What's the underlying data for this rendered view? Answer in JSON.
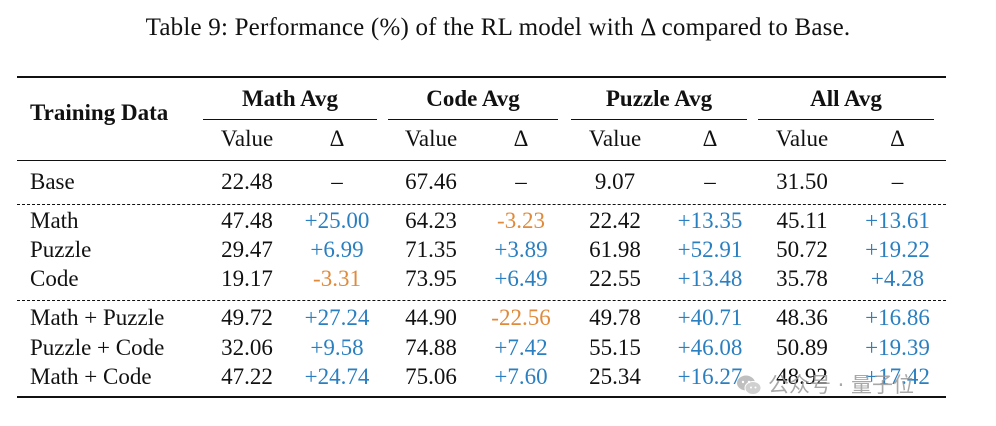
{
  "caption": "Table 9: Performance (%) of the RL model with Δ compared to Base.",
  "header": {
    "row_label": "Training Data",
    "groups": [
      "Math Avg",
      "Code Avg",
      "Puzzle Avg",
      "All Avg"
    ],
    "sub": [
      "Value",
      "Δ"
    ]
  },
  "rows": [
    {
      "label": "Base",
      "cells": [
        {
          "value": "22.48",
          "delta": "–",
          "sign": "neu"
        },
        {
          "value": "67.46",
          "delta": "–",
          "sign": "neu"
        },
        {
          "value": "9.07",
          "delta": "–",
          "sign": "neu"
        },
        {
          "value": "31.50",
          "delta": "–",
          "sign": "neu"
        }
      ]
    },
    {
      "label": "Math",
      "cells": [
        {
          "value": "47.48",
          "delta": "+25.00",
          "sign": "pos"
        },
        {
          "value": "64.23",
          "delta": "-3.23",
          "sign": "neg"
        },
        {
          "value": "22.42",
          "delta": "+13.35",
          "sign": "pos"
        },
        {
          "value": "45.11",
          "delta": "+13.61",
          "sign": "pos"
        }
      ]
    },
    {
      "label": "Puzzle",
      "cells": [
        {
          "value": "29.47",
          "delta": "+6.99",
          "sign": "pos"
        },
        {
          "value": "71.35",
          "delta": "+3.89",
          "sign": "pos"
        },
        {
          "value": "61.98",
          "delta": "+52.91",
          "sign": "pos"
        },
        {
          "value": "50.72",
          "delta": "+19.22",
          "sign": "pos"
        }
      ]
    },
    {
      "label": "Code",
      "cells": [
        {
          "value": "19.17",
          "delta": "-3.31",
          "sign": "neg"
        },
        {
          "value": "73.95",
          "delta": "+6.49",
          "sign": "pos"
        },
        {
          "value": "22.55",
          "delta": "+13.48",
          "sign": "pos"
        },
        {
          "value": "35.78",
          "delta": "+4.28",
          "sign": "pos"
        }
      ]
    },
    {
      "label": "Math + Puzzle",
      "cells": [
        {
          "value": "49.72",
          "delta": "+27.24",
          "sign": "pos"
        },
        {
          "value": "44.90",
          "delta": "-22.56",
          "sign": "neg"
        },
        {
          "value": "49.78",
          "delta": "+40.71",
          "sign": "pos"
        },
        {
          "value": "48.36",
          "delta": "+16.86",
          "sign": "pos"
        }
      ]
    },
    {
      "label": "Puzzle + Code",
      "cells": [
        {
          "value": "32.06",
          "delta": "+9.58",
          "sign": "pos"
        },
        {
          "value": "74.88",
          "delta": "+7.42",
          "sign": "pos"
        },
        {
          "value": "55.15",
          "delta": "+46.08",
          "sign": "pos"
        },
        {
          "value": "50.89",
          "delta": "+19.39",
          "sign": "pos"
        }
      ]
    },
    {
      "label": "Math + Code",
      "cells": [
        {
          "value": "47.22",
          "delta": "+24.74",
          "sign": "pos"
        },
        {
          "value": "75.06",
          "delta": "+7.60",
          "sign": "pos"
        },
        {
          "value": "25.34",
          "delta": "+16.27",
          "sign": "pos"
        },
        {
          "value": "48.92",
          "delta": "+17.42",
          "sign": "pos"
        }
      ]
    }
  ],
  "colors": {
    "positive": "#2a7fc0",
    "negative": "#e08a3c"
  },
  "watermark": {
    "icon": "wechat-icon",
    "text": "公众号 · 量子位"
  }
}
